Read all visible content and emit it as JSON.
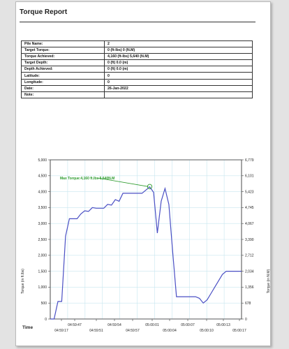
{
  "report": {
    "title": "Torque Report",
    "rows": [
      {
        "label": "Pile Name:",
        "value": "2"
      },
      {
        "label": "Target Torque:",
        "value": "0 (ft-lbs)   0 (N.M)"
      },
      {
        "label": "Torque Achieved:",
        "value": "4,160 (ft-lbs)   5,640 (N.M)"
      },
      {
        "label": "Target Depth:",
        "value": "0 (ft)   0.0 (m)"
      },
      {
        "label": "Depth Achieved:",
        "value": "0 (ft)   0.0 (m)"
      },
      {
        "label": "Latitude:",
        "value": "0"
      },
      {
        "label": "Longitude:",
        "value": "0"
      },
      {
        "label": "Date:",
        "value": "26-Jan-2022"
      },
      {
        "label": "Note:",
        "value": ""
      }
    ]
  },
  "chart_data": {
    "type": "line",
    "xlabel": "Time",
    "ylabel_left": "Torque (in ft.lbs)",
    "ylabel_right": "Torque (in N.M)",
    "ylim": [
      0,
      5000
    ],
    "yticks_left": [
      "0",
      "500",
      "1,000",
      "1,500",
      "2,000",
      "2,500",
      "3,000",
      "3,500",
      "4,000",
      "4,500",
      "5,000"
    ],
    "yticks_right": [
      "0",
      "678",
      "1,356",
      "2,034",
      "2,712",
      "3,390",
      "4,067",
      "4,745",
      "5,423",
      "6,101",
      "6,779"
    ],
    "xticks_top": [
      "04:59:47",
      "04:59:54",
      "05:00:01",
      "05:00:07",
      "05:00:13"
    ],
    "xticks_bottom": [
      "04:59:17",
      "04:59:51",
      "04:59:57",
      "05:00:04",
      "05:00:10",
      "05:00:17"
    ],
    "grid": true,
    "line_color": "#4a4fc4",
    "series": [
      {
        "x": [
          0,
          1,
          2,
          3,
          4,
          5,
          6,
          7,
          8,
          9,
          10,
          11,
          12,
          13,
          14,
          15,
          16,
          17,
          18,
          19,
          20,
          21,
          22,
          23,
          24,
          25,
          26,
          27,
          28,
          29,
          30,
          31,
          32,
          33,
          34,
          35,
          36,
          37,
          38,
          39,
          40,
          41,
          42,
          43,
          44,
          45,
          46,
          47,
          48,
          49,
          50
        ],
        "values": [
          0,
          0,
          550,
          550,
          2600,
          3150,
          3150,
          3150,
          3300,
          3400,
          3380,
          3500,
          3480,
          3480,
          3480,
          3600,
          3580,
          3750,
          3700,
          3950,
          3950,
          3950,
          3950,
          3950,
          3950,
          4050,
          4150,
          3980,
          2700,
          3700,
          4100,
          3600,
          2100,
          700,
          700,
          700,
          700,
          700,
          700,
          650,
          500,
          600,
          800,
          1000,
          1200,
          1400,
          1500,
          1500,
          1500,
          1500,
          1500
        ]
      }
    ],
    "annotation": {
      "text": "Max Torque:4,160 ft.lbs  5,640N.M",
      "color": "#2a9a2a",
      "at_x": 26,
      "at_y": 4160
    }
  }
}
